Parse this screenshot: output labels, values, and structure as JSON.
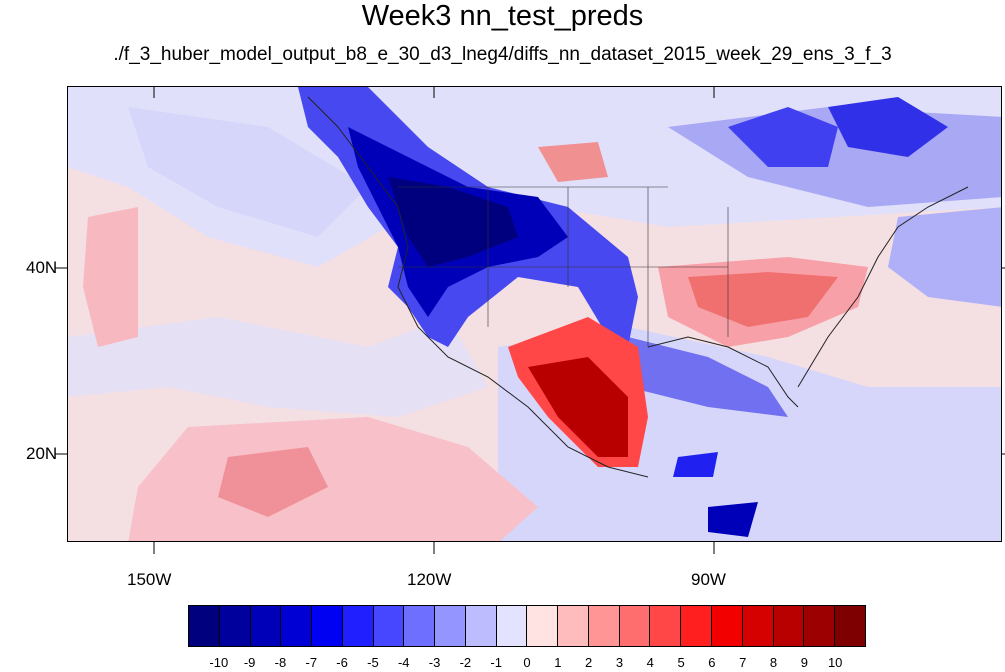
{
  "title": "Week3 nn_test_preds",
  "subtitle": "./f_3_huber_model_output_b8_e_30_d3_lneg4/diffs_nn_dataset_2015_week_29_ens_3_f_3",
  "axes": {
    "x_ticks": [
      "150W",
      "120W",
      "90W"
    ],
    "y_ticks": [
      "40N",
      "20N"
    ]
  },
  "colorbar": {
    "labels": [
      "-10",
      "-9",
      "-8",
      "-7",
      "-6",
      "-5",
      "-4",
      "-3",
      "-2",
      "-1",
      "0",
      "1",
      "2",
      "3",
      "4",
      "5",
      "6",
      "7",
      "8",
      "9",
      "10"
    ],
    "colors": [
      "#00007f",
      "#00009c",
      "#0000b8",
      "#0000d5",
      "#0000f2",
      "#1f1fff",
      "#4747ff",
      "#6e6eff",
      "#9595ff",
      "#bcbcff",
      "#e3e3ff",
      "#ffe3e3",
      "#ffbcbc",
      "#ff9595",
      "#ff6e6e",
      "#ff4747",
      "#ff1f1f",
      "#f20000",
      "#d50000",
      "#b80000",
      "#9c0000",
      "#7f0000"
    ]
  }
}
